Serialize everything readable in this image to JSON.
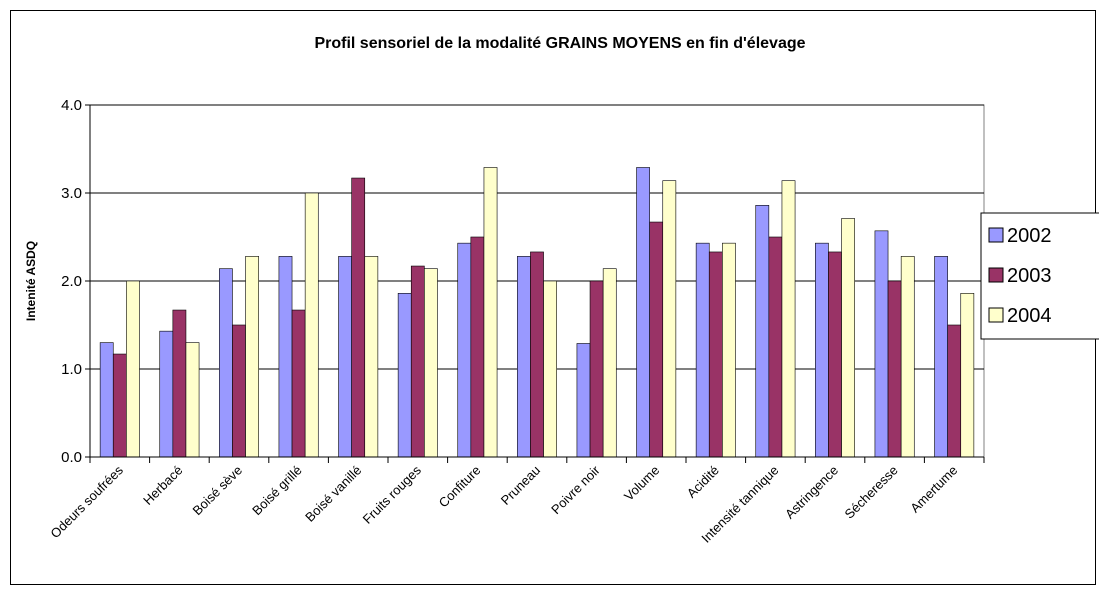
{
  "chart_data": {
    "type": "bar",
    "title": "Profil sensoriel de la modalité GRAINS MOYENS en fin d'élevage",
    "y_label": "Intenité ASDQ",
    "categories": [
      "Odeurs soufrées",
      "Herbacé",
      "Boisé sève",
      "Boisé grillé",
      "Boisé vanillé",
      "Fruits rouges",
      "Confiture",
      "Pruneau",
      "Poivre noir",
      "Volume",
      "Acidité",
      "Intensité tannique",
      "Astringence",
      "Sécheresse",
      "Amertume"
    ],
    "series": [
      {
        "name": "2002",
        "color": "#9999ff",
        "values": [
          1.3,
          1.43,
          2.14,
          2.28,
          2.28,
          1.86,
          2.43,
          2.28,
          1.29,
          3.29,
          2.43,
          2.86,
          2.43,
          2.57,
          2.28
        ]
      },
      {
        "name": "2003",
        "color": "#993366",
        "values": [
          1.17,
          1.67,
          1.5,
          1.67,
          3.17,
          2.17,
          2.5,
          2.33,
          2.0,
          2.67,
          2.33,
          2.5,
          2.33,
          2.0,
          1.5
        ]
      },
      {
        "name": "2004",
        "color": "#ffffcc",
        "values": [
          2.0,
          1.3,
          2.28,
          3.0,
          2.28,
          2.14,
          3.29,
          2.0,
          2.14,
          3.14,
          2.43,
          3.14,
          2.71,
          2.28,
          1.86
        ]
      }
    ],
    "ylim": [
      0,
      4
    ],
    "yticks": [
      {
        "value": 0,
        "label": "0.0"
      },
      {
        "value": 1,
        "label": "1.0"
      },
      {
        "value": 2,
        "label": "2.0"
      },
      {
        "value": 3,
        "label": "3.0"
      },
      {
        "value": 4,
        "label": "4.0"
      }
    ],
    "grid": true,
    "legend": "right"
  }
}
